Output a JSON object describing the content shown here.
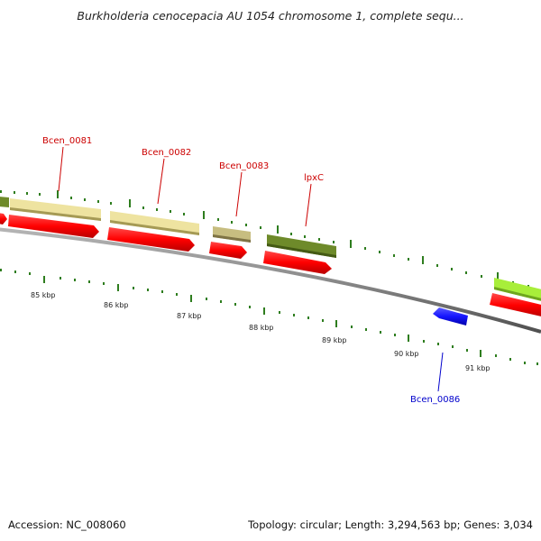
{
  "header": {
    "title": "Burkholderia cenocepacia AU 1054 chromosome 1, complete sequ..."
  },
  "footer": {
    "accession": "Accession: NC_008060",
    "summary": "Topology: circular; Length: 3,294,563 bp; Genes: 3,034"
  },
  "colors": {
    "backbone": "#8a8a8a",
    "cds_forward": "#ff0000",
    "cds_reverse": "#1a1aff",
    "tick": "#2e7d1e",
    "label_forward": "#cc0000",
    "label_reverse": "#0000cc",
    "tan_feature": "#eee3a0",
    "khaki_feature": "#c7bd80",
    "olive_feature": "#6e8a2a",
    "lime_feature": "#a8ee3a"
  },
  "map": {
    "scale_labels": [
      "85 kbp",
      "86 kbp",
      "87 kbp",
      "88 kbp",
      "89 kbp",
      "90 kbp",
      "91 kbp"
    ],
    "gene_labels": [
      {
        "name": "Bcen_0081",
        "strand": "forward"
      },
      {
        "name": "Bcen_0082",
        "strand": "forward"
      },
      {
        "name": "Bcen_0083",
        "strand": "forward"
      },
      {
        "name": "lpxC",
        "strand": "forward"
      },
      {
        "name": "Bcen_0086",
        "strand": "reverse"
      }
    ]
  }
}
